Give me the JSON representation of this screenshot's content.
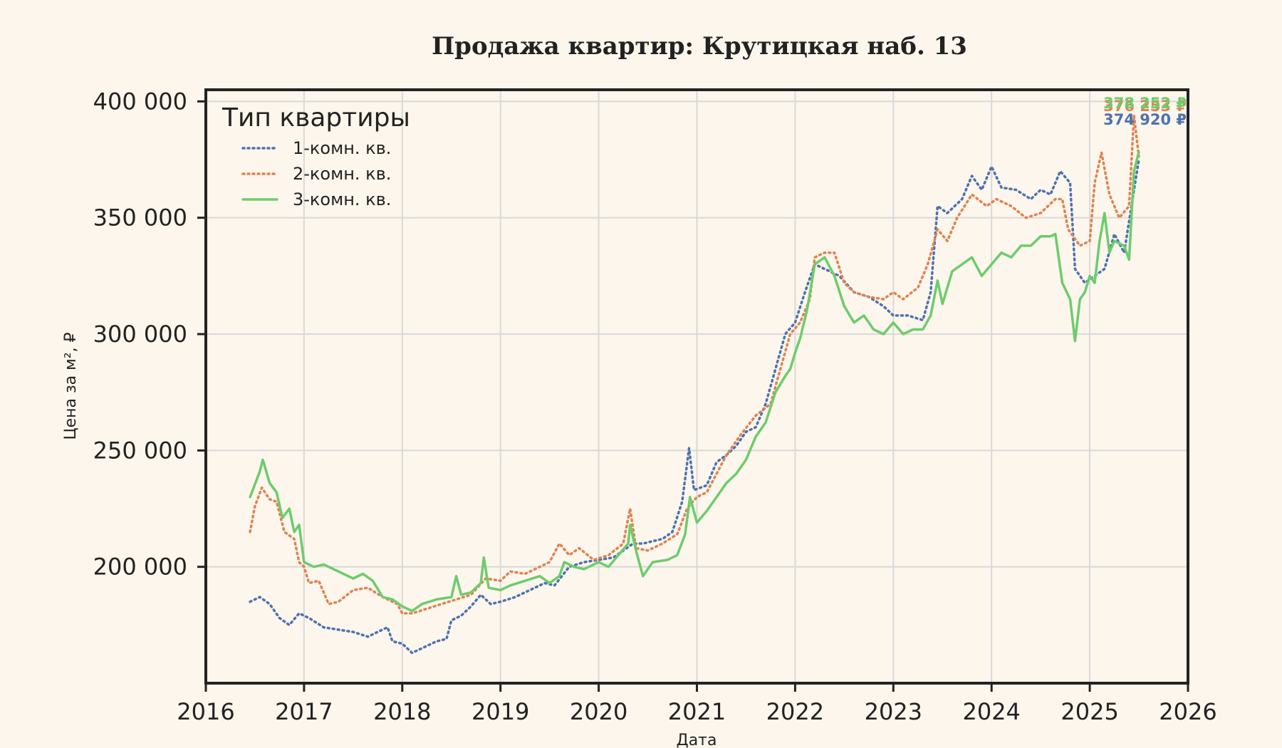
{
  "chart_data": {
    "type": "line",
    "title": "Продажа квартир: Крутицкая наб. 13",
    "xlabel": "Дата",
    "ylabel": "Цена за м², ₽",
    "xlim": [
      2016,
      2026
    ],
    "ylim": [
      150000,
      405000
    ],
    "x_ticks": [
      {
        "value": 2016,
        "label": "2016"
      },
      {
        "value": 2017,
        "label": "2017"
      },
      {
        "value": 2018,
        "label": "2018"
      },
      {
        "value": 2019,
        "label": "2019"
      },
      {
        "value": 2020,
        "label": "2020"
      },
      {
        "value": 2021,
        "label": "2021"
      },
      {
        "value": 2022,
        "label": "2022"
      },
      {
        "value": 2023,
        "label": "2023"
      },
      {
        "value": 2024,
        "label": "2024"
      },
      {
        "value": 2025,
        "label": "2025"
      },
      {
        "value": 2026,
        "label": "2026"
      }
    ],
    "y_ticks": [
      {
        "value": 200000,
        "label": "200 000"
      },
      {
        "value": 250000,
        "label": "250 000"
      },
      {
        "value": 300000,
        "label": "300 000"
      },
      {
        "value": 350000,
        "label": "350 000"
      },
      {
        "value": 400000,
        "label": "400 000"
      }
    ],
    "grid": true,
    "legend": {
      "title": "Тип квартиры",
      "position": "top-left"
    },
    "series": [
      {
        "name": "1-комн. кв.",
        "color": "#4c72b0",
        "style": "dotted",
        "end_label": "374 920 ₽",
        "points": [
          [
            2016.45,
            185000
          ],
          [
            2016.55,
            187000
          ],
          [
            2016.65,
            184000
          ],
          [
            2016.75,
            178000
          ],
          [
            2016.85,
            175000
          ],
          [
            2016.95,
            180000
          ],
          [
            2017.05,
            178000
          ],
          [
            2017.2,
            174000
          ],
          [
            2017.35,
            173000
          ],
          [
            2017.5,
            172000
          ],
          [
            2017.65,
            170000
          ],
          [
            2017.75,
            172000
          ],
          [
            2017.85,
            174000
          ],
          [
            2017.9,
            168000
          ],
          [
            2018.0,
            167000
          ],
          [
            2018.1,
            163000
          ],
          [
            2018.2,
            165000
          ],
          [
            2018.35,
            168000
          ],
          [
            2018.45,
            169000
          ],
          [
            2018.5,
            177000
          ],
          [
            2018.6,
            179000
          ],
          [
            2018.7,
            183000
          ],
          [
            2018.8,
            188000
          ],
          [
            2018.9,
            184000
          ],
          [
            2019.0,
            185000
          ],
          [
            2019.15,
            187000
          ],
          [
            2019.3,
            190000
          ],
          [
            2019.45,
            193000
          ],
          [
            2019.55,
            192000
          ],
          [
            2019.7,
            200000
          ],
          [
            2019.85,
            202000
          ],
          [
            2020.0,
            203000
          ],
          [
            2020.15,
            204000
          ],
          [
            2020.25,
            207000
          ],
          [
            2020.35,
            210000
          ],
          [
            2020.45,
            210000
          ],
          [
            2020.55,
            211000
          ],
          [
            2020.65,
            212000
          ],
          [
            2020.75,
            215000
          ],
          [
            2020.85,
            228000
          ],
          [
            2020.92,
            251000
          ],
          [
            2020.97,
            233000
          ],
          [
            2021.1,
            235000
          ],
          [
            2021.2,
            245000
          ],
          [
            2021.3,
            248000
          ],
          [
            2021.4,
            252000
          ],
          [
            2021.5,
            258000
          ],
          [
            2021.6,
            260000
          ],
          [
            2021.7,
            270000
          ],
          [
            2021.8,
            285000
          ],
          [
            2021.9,
            300000
          ],
          [
            2022.0,
            305000
          ],
          [
            2022.1,
            318000
          ],
          [
            2022.2,
            330000
          ],
          [
            2022.3,
            328000
          ],
          [
            2022.45,
            325000
          ],
          [
            2022.6,
            318000
          ],
          [
            2022.75,
            316000
          ],
          [
            2022.9,
            312000
          ],
          [
            2023.0,
            308000
          ],
          [
            2023.15,
            308000
          ],
          [
            2023.3,
            306000
          ],
          [
            2023.38,
            318000
          ],
          [
            2023.45,
            355000
          ],
          [
            2023.55,
            352000
          ],
          [
            2023.7,
            358000
          ],
          [
            2023.8,
            368000
          ],
          [
            2023.9,
            362000
          ],
          [
            2024.0,
            372000
          ],
          [
            2024.1,
            363000
          ],
          [
            2024.25,
            362000
          ],
          [
            2024.4,
            358000
          ],
          [
            2024.5,
            362000
          ],
          [
            2024.6,
            360000
          ],
          [
            2024.7,
            370000
          ],
          [
            2024.8,
            365000
          ],
          [
            2024.85,
            328000
          ],
          [
            2024.95,
            322000
          ],
          [
            2025.05,
            325000
          ],
          [
            2025.15,
            328000
          ],
          [
            2025.25,
            343000
          ],
          [
            2025.35,
            335000
          ],
          [
            2025.45,
            362000
          ],
          [
            2025.5,
            374920
          ]
        ]
      },
      {
        "name": "2-комн. кв.",
        "color": "#dd8452",
        "style": "dotted",
        "end_label": "376 253 ₽",
        "points": [
          [
            2016.45,
            215000
          ],
          [
            2016.5,
            226000
          ],
          [
            2016.57,
            234000
          ],
          [
            2016.65,
            229000
          ],
          [
            2016.72,
            228000
          ],
          [
            2016.8,
            215000
          ],
          [
            2016.9,
            212000
          ],
          [
            2016.95,
            202000
          ],
          [
            2017.0,
            200000
          ],
          [
            2017.05,
            193000
          ],
          [
            2017.15,
            194000
          ],
          [
            2017.25,
            184000
          ],
          [
            2017.35,
            185000
          ],
          [
            2017.5,
            190000
          ],
          [
            2017.65,
            191000
          ],
          [
            2017.8,
            187000
          ],
          [
            2017.95,
            184000
          ],
          [
            2018.0,
            180000
          ],
          [
            2018.1,
            180000
          ],
          [
            2018.25,
            182000
          ],
          [
            2018.4,
            184000
          ],
          [
            2018.55,
            186000
          ],
          [
            2018.7,
            188000
          ],
          [
            2018.85,
            195000
          ],
          [
            2019.0,
            194000
          ],
          [
            2019.1,
            198000
          ],
          [
            2019.25,
            197000
          ],
          [
            2019.4,
            200000
          ],
          [
            2019.5,
            202000
          ],
          [
            2019.6,
            210000
          ],
          [
            2019.7,
            205000
          ],
          [
            2019.8,
            208000
          ],
          [
            2019.95,
            203000
          ],
          [
            2020.1,
            205000
          ],
          [
            2020.25,
            210000
          ],
          [
            2020.32,
            225000
          ],
          [
            2020.38,
            208000
          ],
          [
            2020.5,
            207000
          ],
          [
            2020.65,
            210000
          ],
          [
            2020.8,
            214000
          ],
          [
            2020.9,
            225000
          ],
          [
            2021.0,
            230000
          ],
          [
            2021.1,
            232000
          ],
          [
            2021.2,
            240000
          ],
          [
            2021.3,
            248000
          ],
          [
            2021.45,
            257000
          ],
          [
            2021.6,
            265000
          ],
          [
            2021.75,
            270000
          ],
          [
            2021.85,
            285000
          ],
          [
            2021.95,
            300000
          ],
          [
            2022.05,
            305000
          ],
          [
            2022.15,
            315000
          ],
          [
            2022.2,
            333000
          ],
          [
            2022.3,
            335000
          ],
          [
            2022.4,
            335000
          ],
          [
            2022.5,
            322000
          ],
          [
            2022.6,
            318000
          ],
          [
            2022.75,
            316000
          ],
          [
            2022.9,
            315000
          ],
          [
            2023.0,
            318000
          ],
          [
            2023.1,
            315000
          ],
          [
            2023.25,
            320000
          ],
          [
            2023.35,
            330000
          ],
          [
            2023.45,
            345000
          ],
          [
            2023.55,
            340000
          ],
          [
            2023.65,
            350000
          ],
          [
            2023.8,
            360000
          ],
          [
            2023.95,
            355000
          ],
          [
            2024.05,
            358000
          ],
          [
            2024.2,
            355000
          ],
          [
            2024.35,
            350000
          ],
          [
            2024.5,
            352000
          ],
          [
            2024.65,
            358000
          ],
          [
            2024.72,
            358000
          ],
          [
            2024.78,
            345000
          ],
          [
            2024.9,
            338000
          ],
          [
            2025.0,
            340000
          ],
          [
            2025.05,
            365000
          ],
          [
            2025.12,
            378000
          ],
          [
            2025.2,
            360000
          ],
          [
            2025.3,
            350000
          ],
          [
            2025.4,
            355000
          ],
          [
            2025.45,
            394000
          ],
          [
            2025.5,
            376253
          ]
        ]
      },
      {
        "name": "3-комн. кв.",
        "color": "#6dcc6d",
        "style": "solid",
        "end_label": "378 252 ₽",
        "points": [
          [
            2016.45,
            230000
          ],
          [
            2016.55,
            241000
          ],
          [
            2016.58,
            246000
          ],
          [
            2016.65,
            236000
          ],
          [
            2016.72,
            232000
          ],
          [
            2016.78,
            221000
          ],
          [
            2016.85,
            225000
          ],
          [
            2016.9,
            215000
          ],
          [
            2016.95,
            218000
          ],
          [
            2017.0,
            202000
          ],
          [
            2017.1,
            200000
          ],
          [
            2017.2,
            201000
          ],
          [
            2017.3,
            199000
          ],
          [
            2017.4,
            197000
          ],
          [
            2017.5,
            195000
          ],
          [
            2017.6,
            197000
          ],
          [
            2017.7,
            194000
          ],
          [
            2017.8,
            187000
          ],
          [
            2017.9,
            186000
          ],
          [
            2018.0,
            183000
          ],
          [
            2018.1,
            181000
          ],
          [
            2018.2,
            184000
          ],
          [
            2018.35,
            186000
          ],
          [
            2018.5,
            187000
          ],
          [
            2018.55,
            196000
          ],
          [
            2018.6,
            188000
          ],
          [
            2018.7,
            189000
          ],
          [
            2018.8,
            193000
          ],
          [
            2018.83,
            204000
          ],
          [
            2018.88,
            191000
          ],
          [
            2019.0,
            190000
          ],
          [
            2019.1,
            192000
          ],
          [
            2019.25,
            194000
          ],
          [
            2019.4,
            196000
          ],
          [
            2019.5,
            193000
          ],
          [
            2019.6,
            196000
          ],
          [
            2019.65,
            202000
          ],
          [
            2019.75,
            200000
          ],
          [
            2019.85,
            199000
          ],
          [
            2020.0,
            202000
          ],
          [
            2020.1,
            200000
          ],
          [
            2020.2,
            205000
          ],
          [
            2020.3,
            210000
          ],
          [
            2020.32,
            218000
          ],
          [
            2020.38,
            207000
          ],
          [
            2020.45,
            196000
          ],
          [
            2020.55,
            202000
          ],
          [
            2020.7,
            203000
          ],
          [
            2020.8,
            205000
          ],
          [
            2020.88,
            214000
          ],
          [
            2020.93,
            230000
          ],
          [
            2021.0,
            219000
          ],
          [
            2021.1,
            224000
          ],
          [
            2021.2,
            230000
          ],
          [
            2021.3,
            236000
          ],
          [
            2021.4,
            240000
          ],
          [
            2021.5,
            246000
          ],
          [
            2021.6,
            256000
          ],
          [
            2021.7,
            262000
          ],
          [
            2021.8,
            275000
          ],
          [
            2021.9,
            282000
          ],
          [
            2021.95,
            285000
          ],
          [
            2022.0,
            292000
          ],
          [
            2022.05,
            298000
          ],
          [
            2022.12,
            310000
          ],
          [
            2022.2,
            330000
          ],
          [
            2022.3,
            333000
          ],
          [
            2022.4,
            325000
          ],
          [
            2022.5,
            312000
          ],
          [
            2022.6,
            305000
          ],
          [
            2022.7,
            308000
          ],
          [
            2022.8,
            302000
          ],
          [
            2022.9,
            300000
          ],
          [
            2023.0,
            305000
          ],
          [
            2023.1,
            300000
          ],
          [
            2023.2,
            302000
          ],
          [
            2023.3,
            302000
          ],
          [
            2023.38,
            308000
          ],
          [
            2023.45,
            323000
          ],
          [
            2023.5,
            313000
          ],
          [
            2023.6,
            327000
          ],
          [
            2023.7,
            330000
          ],
          [
            2023.8,
            333000
          ],
          [
            2023.9,
            325000
          ],
          [
            2024.0,
            330000
          ],
          [
            2024.1,
            335000
          ],
          [
            2024.2,
            333000
          ],
          [
            2024.3,
            338000
          ],
          [
            2024.4,
            338000
          ],
          [
            2024.5,
            342000
          ],
          [
            2024.6,
            342000
          ],
          [
            2024.65,
            343000
          ],
          [
            2024.72,
            322000
          ],
          [
            2024.8,
            315000
          ],
          [
            2024.85,
            297000
          ],
          [
            2024.9,
            315000
          ],
          [
            2024.95,
            318000
          ],
          [
            2025.0,
            325000
          ],
          [
            2025.05,
            322000
          ],
          [
            2025.1,
            340000
          ],
          [
            2025.15,
            352000
          ],
          [
            2025.2,
            335000
          ],
          [
            2025.25,
            340000
          ],
          [
            2025.35,
            338000
          ],
          [
            2025.4,
            332000
          ],
          [
            2025.45,
            370000
          ],
          [
            2025.5,
            378252
          ]
        ]
      }
    ]
  }
}
